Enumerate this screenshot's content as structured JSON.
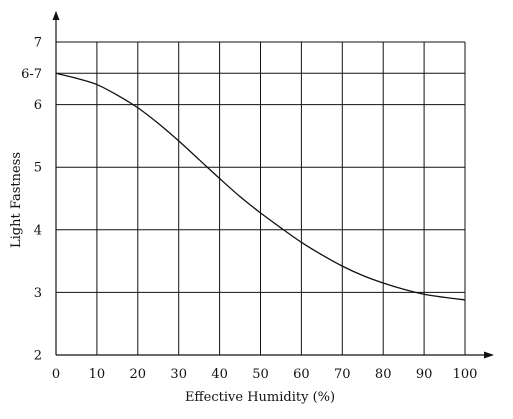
{
  "chart_data": {
    "type": "line",
    "title": "",
    "xlabel": "Effective Humidity (%)",
    "ylabel": "Light Fastness",
    "xlim": [
      0,
      100
    ],
    "ylim": [
      2,
      7
    ],
    "x_ticks": [
      0,
      10,
      20,
      30,
      40,
      50,
      60,
      70,
      80,
      90,
      100
    ],
    "x_tick_labels": [
      "0",
      "10",
      "20",
      "30",
      "40",
      "50",
      "60",
      "70",
      "80",
      "90",
      "100"
    ],
    "y_ticks": [
      2,
      3,
      4,
      5,
      6,
      6.5,
      7
    ],
    "y_tick_labels": [
      "2",
      "3",
      "4",
      "5",
      "6",
      "6-7",
      "7"
    ],
    "grid": true,
    "series": [
      {
        "x": [
          0,
          5,
          10,
          15,
          20,
          25,
          30,
          35,
          40,
          45,
          50,
          55,
          60,
          65,
          70,
          75,
          80,
          85,
          90,
          95,
          100
        ],
        "y": [
          6.5,
          6.42,
          6.32,
          6.15,
          5.95,
          5.7,
          5.42,
          5.12,
          4.82,
          4.53,
          4.27,
          4.03,
          3.8,
          3.6,
          3.42,
          3.27,
          3.15,
          3.05,
          2.97,
          2.92,
          2.88
        ]
      }
    ]
  }
}
